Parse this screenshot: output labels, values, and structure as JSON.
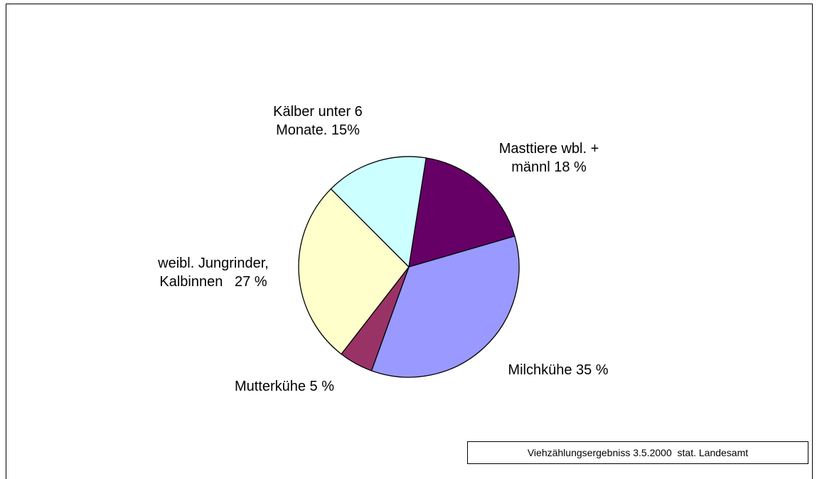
{
  "chart_data": {
    "type": "pie",
    "values": [
      18,
      35,
      5,
      27,
      15
    ],
    "value_labels": [
      "Masttiere wbl. + männl 18 %",
      "Milchkühe 35 %",
      "Mutterkühe 5 %",
      "weibl. Jungrinder, Kalbinnen   27 %",
      "Kälber unter 6 Monate. 15%"
    ],
    "colors": [
      "#660066",
      "#9999ff",
      "#993366",
      "#ffffcc",
      "#ccffff"
    ],
    "source": "Viehzählungsergebniss 3.5.2000  stat. Landesamt"
  }
}
